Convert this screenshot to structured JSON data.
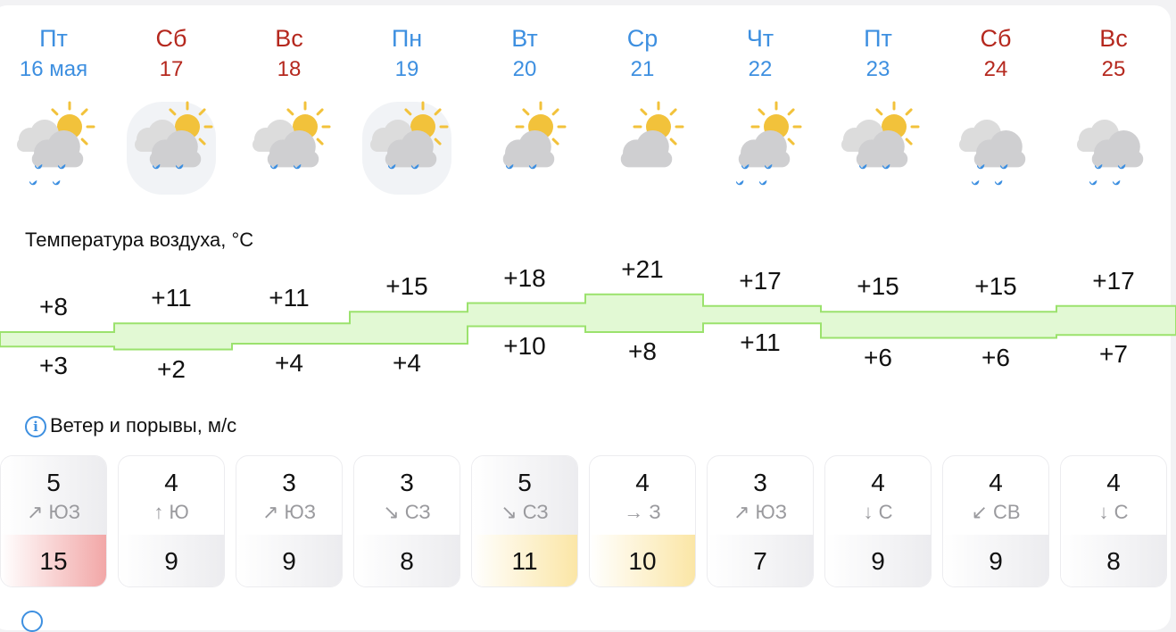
{
  "colors": {
    "weekday": "#3d8fe0",
    "weekend": "#b5281e",
    "band_fill": "#e2f9d4",
    "band_stroke": "#9be26d"
  },
  "days": [
    {
      "dow": "Пт",
      "date": "16 мая",
      "weekend": false,
      "icon": "partly-cloudy-heavy-rain-icon",
      "tmax": "+8",
      "tmin": "+3",
      "max": 8,
      "min": 3,
      "wind": "5",
      "dir": "↗ ЮЗ",
      "gust": "15",
      "gust_level": "high"
    },
    {
      "dow": "Сб",
      "date": "17",
      "weekend": true,
      "icon": "fog-partly-cloudy-light-rain-icon",
      "tmax": "+11",
      "tmin": "+2",
      "max": 11,
      "min": 2,
      "wind": "4",
      "dir": "↑ Ю",
      "gust": "9",
      "gust_level": "normal"
    },
    {
      "dow": "Вс",
      "date": "18",
      "weekend": true,
      "icon": "partly-cloudy-light-rain-icon",
      "tmax": "+11",
      "tmin": "+4",
      "max": 11,
      "min": 4,
      "wind": "3",
      "dir": "↗ ЮЗ",
      "gust": "9",
      "gust_level": "normal"
    },
    {
      "dow": "Пн",
      "date": "19",
      "weekend": false,
      "icon": "fog-partly-cloudy-light-rain-icon",
      "tmax": "+15",
      "tmin": "+4",
      "max": 15,
      "min": 4,
      "wind": "3",
      "dir": "↘ СЗ",
      "gust": "8",
      "gust_level": "normal"
    },
    {
      "dow": "Вт",
      "date": "20",
      "weekend": false,
      "icon": "sun-cloud-light-rain-icon",
      "tmax": "+18",
      "tmin": "+10",
      "max": 18,
      "min": 10,
      "wind": "5",
      "dir": "↘ СЗ",
      "gust": "11",
      "gust_level": "medium"
    },
    {
      "dow": "Ср",
      "date": "21",
      "weekend": false,
      "icon": "sun-cloud-icon",
      "tmax": "+21",
      "tmin": "+8",
      "max": 21,
      "min": 8,
      "wind": "4",
      "dir": "→ З",
      "gust": "10",
      "gust_level": "medium"
    },
    {
      "dow": "Чт",
      "date": "22",
      "weekend": false,
      "icon": "sun-cloud-heavy-rain-icon",
      "tmax": "+17",
      "tmin": "+11",
      "max": 17,
      "min": 11,
      "wind": "3",
      "dir": "↗ ЮЗ",
      "gust": "7",
      "gust_level": "normal"
    },
    {
      "dow": "Пт",
      "date": "23",
      "weekend": false,
      "icon": "partly-cloudy-light-rain-icon",
      "tmax": "+15",
      "tmin": "+6",
      "max": 15,
      "min": 6,
      "wind": "4",
      "dir": "↓ С",
      "gust": "9",
      "gust_level": "normal"
    },
    {
      "dow": "Сб",
      "date": "24",
      "weekend": true,
      "icon": "cloudy-heavy-rain-icon",
      "tmax": "+15",
      "tmin": "+6",
      "max": 15,
      "min": 6,
      "wind": "4",
      "dir": "↙ СВ",
      "gust": "9",
      "gust_level": "normal"
    },
    {
      "dow": "Вс",
      "date": "25",
      "weekend": true,
      "icon": "cloudy-heavy-rain-icon",
      "tmax": "+17",
      "tmin": "+7",
      "max": 17,
      "min": 7,
      "wind": "4",
      "dir": "↓ С",
      "gust": "8",
      "gust_level": "normal"
    }
  ],
  "temp_title": "Температура воздуха, °C",
  "wind_title": "Ветер и порывы, м/с"
}
